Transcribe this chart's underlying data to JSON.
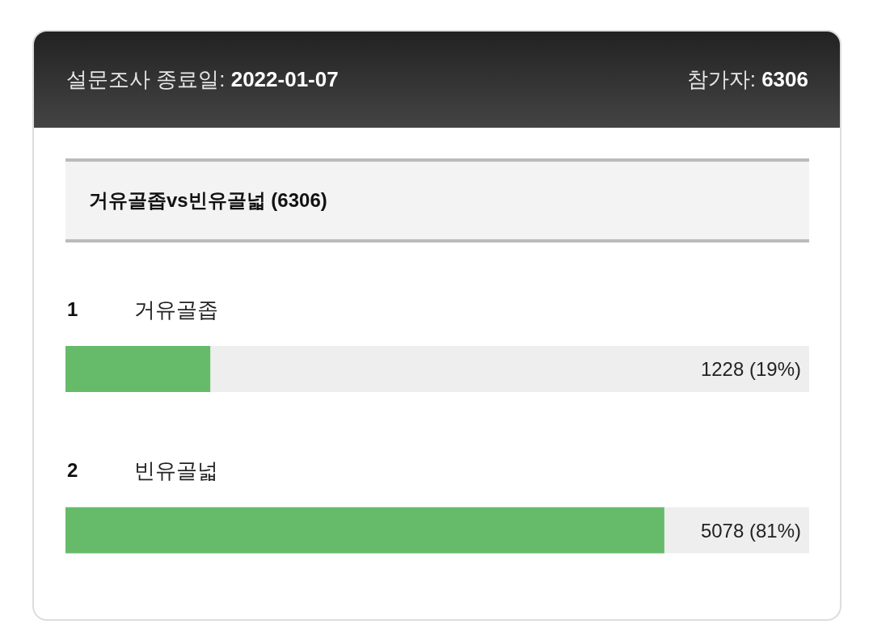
{
  "chart_data": {
    "type": "bar",
    "orientation": "horizontal",
    "title": "거유골좁vs빈유골넓 (6306)",
    "categories": [
      "거유골좁",
      "빈유골넓"
    ],
    "values": [
      1228,
      5078
    ],
    "value_labels": [
      "1228 (19%)",
      "5078 (81%)"
    ],
    "color": "#66bb6a",
    "xlim": [
      0,
      6306
    ],
    "tick_labels": "y",
    "annotations": [
      "설문조사 종료일: 2022-01-07",
      "참가자: 6306",
      "1",
      "2"
    ]
  }
}
